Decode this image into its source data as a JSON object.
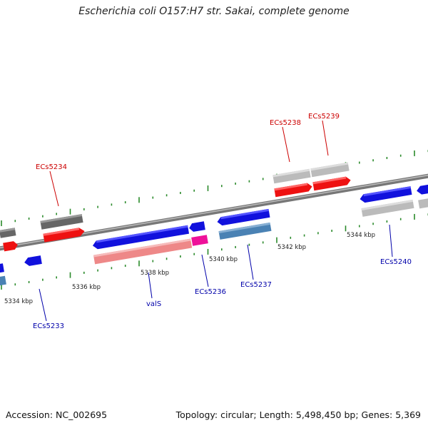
{
  "title": "Escherichia coli O157:H7 str. Sakai, complete genome",
  "footer": {
    "accession": "Accession: NC_002695",
    "summary": "Topology: circular; Length: 5,498,450 bp; Genes: 5,369"
  },
  "tick_labels": [
    "5334 kbp",
    "5336 kbp",
    "5338 kbp",
    "5340 kbp",
    "5342 kbp",
    "5344 kbp"
  ],
  "gene_labels": [
    {
      "id": "ecs5238",
      "text": "ECs5238",
      "color": "#cc0000"
    },
    {
      "id": "ecs5239",
      "text": "ECs5239",
      "color": "#cc0000"
    },
    {
      "id": "ecs5234",
      "text": "ECs5234",
      "color": "#cc0000"
    },
    {
      "id": "ecs5233",
      "text": "ECs5233",
      "color": "#0000aa"
    },
    {
      "id": "vals",
      "text": "valS",
      "color": "#0000aa"
    },
    {
      "id": "ecs5236",
      "text": "ECs5236",
      "color": "#0000aa"
    },
    {
      "id": "ecs5237",
      "text": "ECs5237",
      "color": "#0000aa"
    },
    {
      "id": "ecs5240",
      "text": "ECs5240",
      "color": "#0000aa"
    }
  ],
  "colors": {
    "forward_cds": "#ee1111",
    "reverse_cds": "#1111dd",
    "grey_dark": "#666666",
    "grey_light": "#bbbbbb",
    "steel": "#4a82b4",
    "pink": "#ee8888",
    "magenta": "#ee1199",
    "tick": "#2a8a2a",
    "backbone": "#888888"
  }
}
